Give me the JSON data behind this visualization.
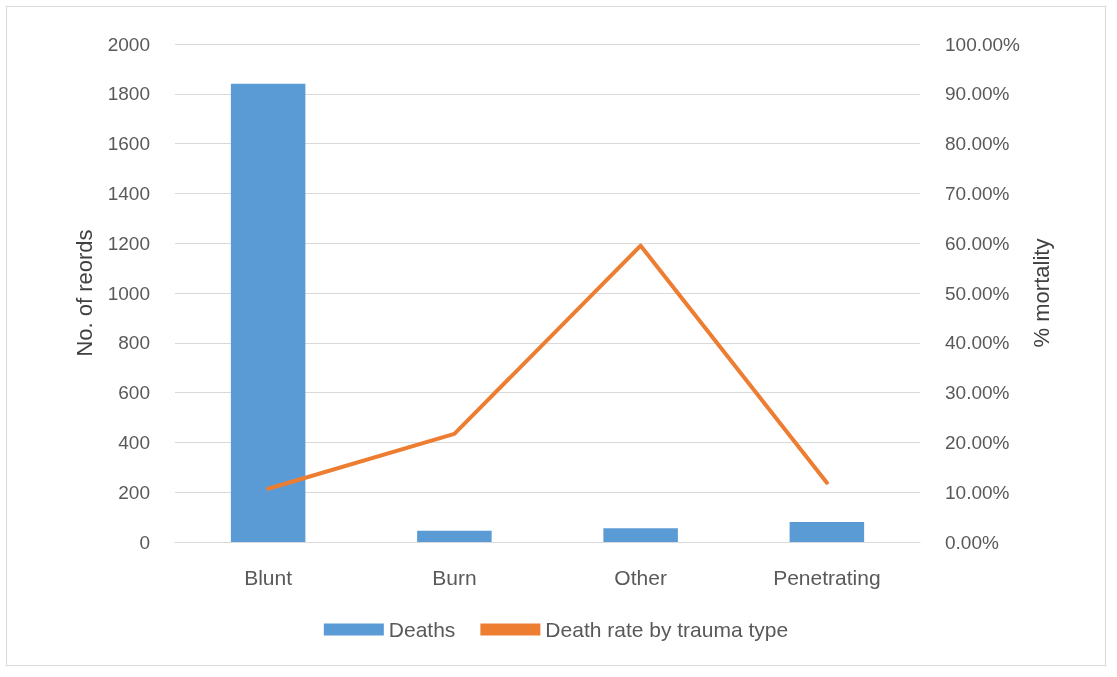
{
  "chart_data": {
    "type": "bar",
    "categories": [
      "Blunt",
      "Burn",
      "Other",
      "Penetrating"
    ],
    "ylabel": "No. of reords",
    "y2label": "% mortality",
    "series": [
      {
        "name": "Deaths",
        "color": "#5b9bd5",
        "values": [
          1840,
          45,
          55,
          80
        ]
      },
      {
        "name": "Death rate by trauma type",
        "type": "line",
        "axis": "y2",
        "color": "#ed7d31",
        "marker": "none",
        "values": [
          10.7,
          21.7,
          59.5,
          11.9
        ]
      }
    ],
    "ylim": [
      0,
      2000
    ],
    "yticks": [
      0,
      200,
      400,
      600,
      800,
      1000,
      1200,
      1400,
      1600,
      1800,
      2000
    ],
    "y2lim": [
      0,
      100
    ],
    "y2ticks": [
      {
        "value": 0,
        "label": "0.00%"
      },
      {
        "value": 10,
        "label": "10.00%"
      },
      {
        "value": 20,
        "label": "20.00%"
      },
      {
        "value": 30,
        "label": "30.00%"
      },
      {
        "value": 40,
        "label": "40.00%"
      },
      {
        "value": 50,
        "label": "50.00%"
      },
      {
        "value": 60,
        "label": "60.00%"
      },
      {
        "value": 70,
        "label": "70.00%"
      },
      {
        "value": 80,
        "label": "80.00%"
      },
      {
        "value": 90,
        "label": "90.00%"
      },
      {
        "value": 100,
        "label": "100.00%"
      }
    ],
    "grid": "y",
    "legend": "bottom"
  }
}
